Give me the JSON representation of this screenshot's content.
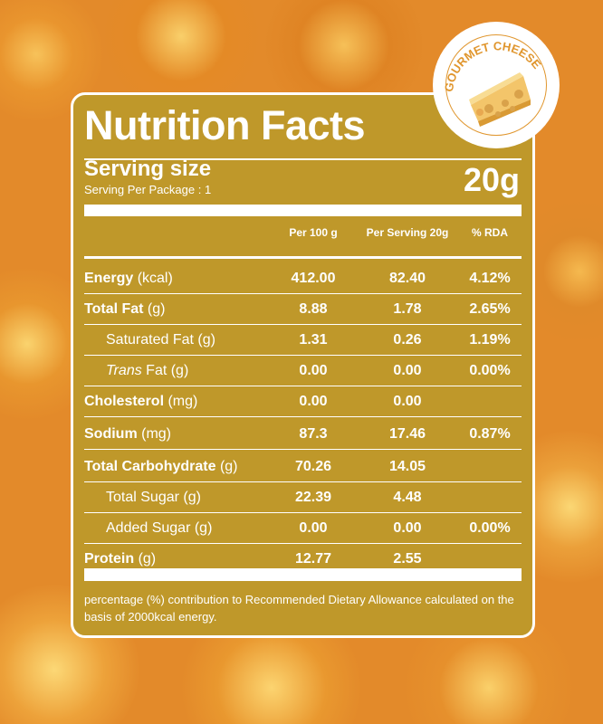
{
  "title": "Nutrition Facts",
  "serving": {
    "label": "Serving size",
    "per_package": "Serving Per Package : 1",
    "size": "20g"
  },
  "columns": [
    "Per 100 g",
    "Per Serving 20g",
    "% RDA"
  ],
  "rows": [
    {
      "name": "Energy",
      "unit": " (kcal)",
      "bold": true,
      "indent": false,
      "italic": false,
      "per100": "412.00",
      "serving": "82.40",
      "rda": "4.12%"
    },
    {
      "name": "Total Fat",
      "unit": " (g)",
      "bold": true,
      "indent": false,
      "italic": false,
      "per100": "8.88",
      "serving": "1.78",
      "rda": "2.65%"
    },
    {
      "name": "Saturated Fat",
      "unit": " (g)",
      "bold": false,
      "indent": true,
      "italic": false,
      "per100": "1.31",
      "serving": "0.26",
      "rda": "1.19%"
    },
    {
      "name": "Trans",
      "unit": " Fat (g)",
      "bold": false,
      "indent": true,
      "italic": true,
      "per100": "0.00",
      "serving": "0.00",
      "rda": "0.00%"
    },
    {
      "name": "Cholesterol",
      "unit": " (mg)",
      "bold": true,
      "indent": false,
      "italic": false,
      "per100": "0.00",
      "serving": "0.00",
      "rda": ""
    },
    {
      "name": "Sodium",
      "unit": " (mg)",
      "bold": true,
      "indent": false,
      "italic": false,
      "per100": "87.3",
      "serving": "17.46",
      "rda": "0.87%"
    },
    {
      "name": "Total Carbohydrate",
      "unit": " (g)",
      "bold": true,
      "indent": false,
      "italic": false,
      "per100": "70.26",
      "serving": "14.05",
      "rda": ""
    },
    {
      "name": "Total Sugar",
      "unit": " (g)",
      "bold": false,
      "indent": true,
      "italic": false,
      "per100": "22.39",
      "serving": "4.48",
      "rda": ""
    },
    {
      "name": "Added Sugar",
      "unit": " (g)",
      "bold": false,
      "indent": true,
      "italic": false,
      "per100": "0.00",
      "serving": "0.00",
      "rda": "0.00%"
    },
    {
      "name": "Protein",
      "unit": " (g)",
      "bold": true,
      "indent": false,
      "italic": false,
      "per100": "12.77",
      "serving": "2.55",
      "rda": ""
    }
  ],
  "footnote": "percentage (%) contribution to Recommended Dietary Allowance calculated on the basis of 2000kcal energy.",
  "badge": {
    "text": "GOURMET CHEESE",
    "icon": "cheese-icon"
  },
  "colors": {
    "panel": "#bf982a",
    "badge_text": "#e0962e"
  }
}
